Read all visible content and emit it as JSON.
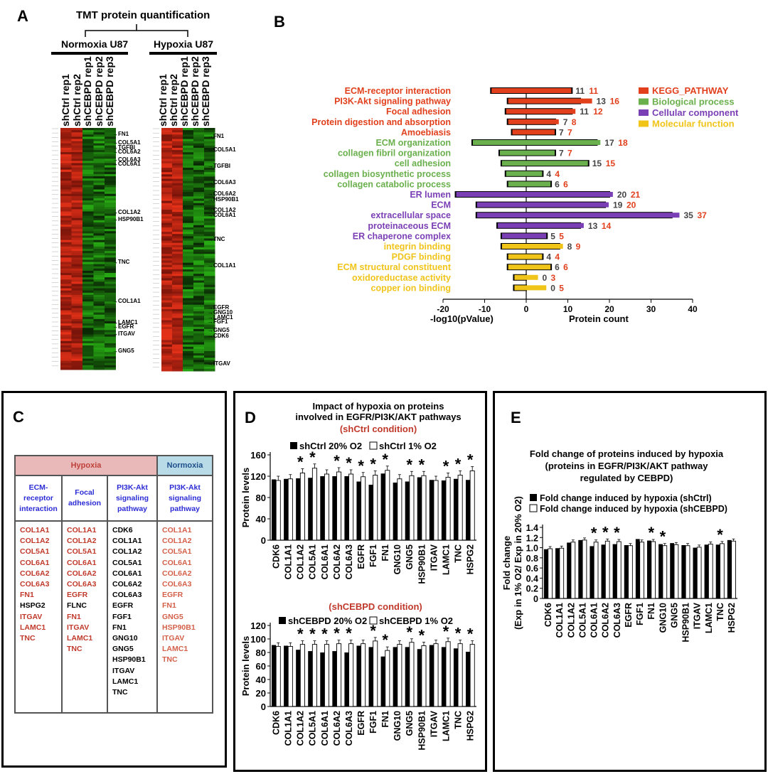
{
  "panels": {
    "A": "A",
    "B": "B",
    "C": "C",
    "D": "D",
    "E": "E"
  },
  "panelA": {
    "title": "TMT protein quantification",
    "group1": "Normoxia U87",
    "group2": "Hypoxia U87",
    "columns": [
      "shCtrl rep1",
      "shCtrl rep2",
      "shCEBPD rep1",
      "shCEBPD rep2",
      "shCEBPD rep3"
    ],
    "heatmap1_labels": [
      "→FN1",
      "→COL5A1",
      "→TGFBI",
      "→COL6A2",
      "→COL6A3",
      "→COL6A1",
      "→COL1A2",
      "→HSP90B1",
      "→TNC",
      "→COL1A1",
      "→LAMC1",
      "→EGFR",
      "→ITGAV",
      "→GNG5"
    ],
    "heatmap2_labels": [
      "→FN1",
      "→COL5A1",
      "→TGFBI",
      "→COL6A3",
      "→COL6A2",
      "→HSP90B1",
      "→COL1A2",
      "→COL6A1",
      "→TNC",
      "→COL1A1",
      "→EGFR",
      "→GNG10",
      "→LAMC1",
      "→FGF1",
      "→GNG5",
      "→CDK6",
      "→ITGAV"
    ]
  },
  "chart_data": [
    {
      "type": "bar",
      "id": "B",
      "categories": [
        "ECM-receptor interaction",
        "PI3K-Akt signaling pathway",
        "Focal adhesion",
        "Protein digestion and absorption",
        "Amoebiasis",
        "ECM organization",
        "collagen fibril organization",
        "cell adhesion",
        "collagen biosynthetic process",
        "collagen catabolic process",
        "ER lumen",
        "ECM",
        "extracellular space",
        "proteinaceous ECM",
        "ER chaperone complex",
        "integrin binding",
        "PDGF binding",
        "ECM structural constituent",
        "oxidoreductase activity",
        "copper ion binding"
      ],
      "category_group": [
        "KEGG_PATHWAY",
        "KEGG_PATHWAY",
        "KEGG_PATHWAY",
        "KEGG_PATHWAY",
        "KEGG_PATHWAY",
        "Biological process",
        "Biological process",
        "Biological process",
        "Biological process",
        "Biological process",
        "Cellular component",
        "Cellular component",
        "Cellular component",
        "Cellular component",
        "Cellular component",
        "Molecular function",
        "Molecular function",
        "Molecular function",
        "Molecular function",
        "Molecular function"
      ],
      "series": [
        {
          "name": "-log10(pValue)",
          "values": [
            8.5,
            4.5,
            5,
            4.5,
            3.5,
            13,
            6.5,
            6,
            5,
            4.5,
            17,
            12,
            12,
            7,
            6,
            6,
            4.5,
            4.5,
            3,
            3
          ]
        },
        {
          "name": "Protein count",
          "values": [
            11,
            16,
            12,
            8,
            7,
            18,
            7,
            15,
            4,
            6,
            21,
            20,
            37,
            14,
            5,
            9,
            4,
            6,
            3,
            5
          ]
        },
        {
          "name": "Protein count (black)",
          "values": [
            11,
            13,
            11,
            7,
            7,
            17,
            7,
            15,
            4,
            6,
            20,
            19,
            35,
            13,
            5,
            8,
            4,
            6,
            0,
            0
          ]
        }
      ],
      "count_red": [
        "11",
        "16",
        "12",
        "8",
        "7",
        "18",
        "7",
        "15",
        "4",
        "6",
        "21",
        "20",
        "37",
        "14",
        "5",
        "9",
        "4",
        "6",
        "3",
        "5"
      ],
      "count_black": [
        "11",
        "13",
        "11",
        "7",
        "7",
        "17",
        "7",
        "15",
        "4",
        "6",
        "20",
        "19",
        "35",
        "13",
        "5",
        "8",
        "4",
        "6",
        "0",
        "0"
      ],
      "legend": [
        "KEGG_PATHWAY",
        "Biological process",
        "Cellular component",
        "Molecular function"
      ],
      "colors": {
        "KEGG_PATHWAY": "#e2401d",
        "Biological process": "#6ab04c",
        "Cellular component": "#7b3fb5",
        "Molecular function": "#f0c419"
      },
      "xticks": [
        "-20",
        "-10",
        "0",
        "10",
        "20",
        "30",
        "40"
      ],
      "xlim": [
        -20,
        40
      ],
      "xlabel_left": "-log10(pValue)",
      "xlabel_right": "Protein count"
    },
    {
      "type": "bar",
      "id": "D1",
      "title": "Impact of hypoxia on proteins\ninvolved in EGFR/PI3K/AKT pathways",
      "subtitle": "(shCtrl condition)",
      "categories": [
        "CDK6",
        "COL1A1",
        "COL1A2",
        "COL5A1",
        "COL6A1",
        "COL6A2",
        "COL6A3",
        "EGFR",
        "FGF1",
        "FN1",
        "GNG10",
        "GNG5",
        "HSP90B1",
        "ITGAV",
        "LAMC1",
        "TNC",
        "HSPG2"
      ],
      "series": [
        {
          "name": "shCtrl 20% O2",
          "values": [
            114,
            115,
            116,
            117,
            120,
            120,
            120,
            110,
            104,
            125,
            108,
            110,
            118,
            113,
            112,
            115,
            113
          ]
        },
        {
          "name": "shCtrl 1% O2",
          "values": [
            112,
            115,
            126,
            135,
            124,
            128,
            124,
            119,
            122,
            131,
            115,
            121,
            121,
            112,
            118,
            122,
            130
          ]
        }
      ],
      "significant": [
        false,
        false,
        true,
        true,
        false,
        true,
        true,
        true,
        true,
        true,
        false,
        true,
        true,
        false,
        true,
        true,
        true
      ],
      "ylabel": "Protein levels",
      "ylim": [
        0,
        160
      ],
      "yticks": [
        "0",
        "40",
        "80",
        "120",
        "160"
      ]
    },
    {
      "type": "bar",
      "id": "D2",
      "subtitle": "(shCEBPD condition)",
      "categories": [
        "CDK6",
        "COL1A1",
        "COL1A2",
        "COL5A1",
        "COL6A1",
        "COL6A2",
        "COL6A3",
        "EGFR",
        "FGF1",
        "FN1",
        "GNG10",
        "GNG5",
        "HSP90B1",
        "ITGAV",
        "LAMC1",
        "TNC",
        "HSPG2"
      ],
      "series": [
        {
          "name": "shCEBPD 20% O2",
          "values": [
            91,
            90,
            84,
            82,
            80,
            82,
            80,
            90,
            88,
            74,
            88,
            88,
            85,
            91,
            88,
            86,
            81
          ]
        },
        {
          "name": "shCEBPD 1% O2",
          "values": [
            89,
            89,
            92,
            92,
            92,
            93,
            93,
            93,
            97,
            83,
            92,
            95,
            90,
            93,
            96,
            93,
            92
          ]
        }
      ],
      "significant": [
        false,
        false,
        true,
        true,
        true,
        true,
        true,
        false,
        true,
        true,
        false,
        true,
        true,
        false,
        true,
        true,
        true
      ],
      "ylabel": "Protein levels",
      "ylim": [
        0,
        120
      ],
      "yticks": [
        "0",
        "20",
        "40",
        "60",
        "80",
        "100",
        "120"
      ]
    },
    {
      "type": "bar",
      "id": "E",
      "title": "Fold change of proteins induced by hypoxia\n(proteins in EGFR/PI3K/AKT pathway\nregulated by CEBPD)",
      "categories": [
        "CDK6",
        "COL1A1",
        "COL1A2",
        "COL5A1",
        "COL6A1",
        "COL6A2",
        "COL6A3",
        "EGFR",
        "FGF1",
        "FN1",
        "GNG10",
        "GNG5",
        "HSP90B1",
        "ITGAV",
        "LAMC1",
        "TNC",
        "HSPG2"
      ],
      "series": [
        {
          "name": "Fold change induced by hypoxia (shCtrl)",
          "values": [
            0.97,
            0.99,
            1.1,
            1.15,
            1.03,
            1.06,
            1.07,
            1.05,
            1.17,
            1.14,
            1.07,
            1.09,
            1.05,
            1.0,
            1.06,
            1.06,
            1.15
          ]
        },
        {
          "name": "Fold change induced by hypoxia (shCEBPD)",
          "values": [
            0.98,
            0.99,
            1.11,
            1.15,
            1.11,
            1.13,
            1.12,
            1.04,
            1.11,
            1.12,
            1.04,
            1.06,
            1.04,
            1.01,
            1.07,
            1.08,
            1.13
          ]
        }
      ],
      "significant": [
        false,
        false,
        false,
        false,
        true,
        true,
        true,
        false,
        false,
        true,
        true,
        false,
        false,
        false,
        false,
        true,
        false
      ],
      "ylabel": "Fold change\n(Exp in 1% O2/ Exp in 20% O2)",
      "ylim": [
        0,
        1.4
      ],
      "yticks": [
        "0",
        "0.2",
        "0.4",
        "0.6",
        "0.8",
        "1.0",
        "1.2",
        "1.4"
      ]
    }
  ],
  "panelC": {
    "hypoxia": "Hypoxia",
    "normoxia": "Normoxia",
    "columns": [
      {
        "header": "ECM-\nreceptor\ninteraction",
        "genes": [
          [
            "COL1A1",
            "r"
          ],
          [
            "COL1A2",
            "r"
          ],
          [
            "COL5A1",
            "r"
          ],
          [
            "COL6A1",
            "r"
          ],
          [
            "COL6A2",
            "r"
          ],
          [
            "COL6A3",
            "r"
          ],
          [
            "FN1",
            "r"
          ],
          [
            "HSPG2",
            "k"
          ],
          [
            "ITGAV",
            "r"
          ],
          [
            "LAMC1",
            "r"
          ],
          [
            "TNC",
            "r"
          ]
        ]
      },
      {
        "header": "Focal\nadhesion",
        "genes": [
          [
            "COL1A1",
            "r"
          ],
          [
            "COL1A2",
            "r"
          ],
          [
            "COL5A1",
            "r"
          ],
          [
            "COL6A1",
            "r"
          ],
          [
            "COL6A2",
            "r"
          ],
          [
            "COL6A3",
            "r"
          ],
          [
            "EGFR",
            "r"
          ],
          [
            "FLNC",
            "k"
          ],
          [
            "FN1",
            "r"
          ],
          [
            "ITGAV",
            "r"
          ],
          [
            "LAMC1",
            "r"
          ],
          [
            "TNC",
            "r"
          ]
        ]
      },
      {
        "header": "PI3K-Akt\nsignaling\npathway",
        "genes": [
          [
            "CDK6",
            "k"
          ],
          [
            "COL1A1",
            "k"
          ],
          [
            "COL1A2",
            "k"
          ],
          [
            "COL5A1",
            "k"
          ],
          [
            "COL6A1",
            "k"
          ],
          [
            "COL6A2",
            "k"
          ],
          [
            "COL6A3",
            "k"
          ],
          [
            "EGFR",
            "k"
          ],
          [
            "FGF1",
            "k"
          ],
          [
            "FN1",
            "k"
          ],
          [
            "GNG10",
            "k"
          ],
          [
            "GNG5",
            "k"
          ],
          [
            "HSP90B1",
            "k"
          ],
          [
            "ITGAV",
            "k"
          ],
          [
            "LAMC1",
            "k"
          ],
          [
            "TNC",
            "k"
          ]
        ]
      },
      {
        "header": "PI3K-Akt\nsignaling\npathway",
        "genes": [
          [
            "COL1A1",
            "r"
          ],
          [
            "COL1A2",
            "r"
          ],
          [
            "COL5A1",
            "r"
          ],
          [
            "COL6A1",
            "r"
          ],
          [
            "COL6A2",
            "r"
          ],
          [
            "COL6A3",
            "r"
          ],
          [
            "EGFR",
            "r"
          ],
          [
            "FN1",
            "r"
          ],
          [
            "GNG5",
            "r"
          ],
          [
            "HSP90B1",
            "r"
          ],
          [
            "ITGAV",
            "r"
          ],
          [
            "LAMC1",
            "r"
          ],
          [
            "TNC",
            "r"
          ]
        ]
      }
    ]
  }
}
